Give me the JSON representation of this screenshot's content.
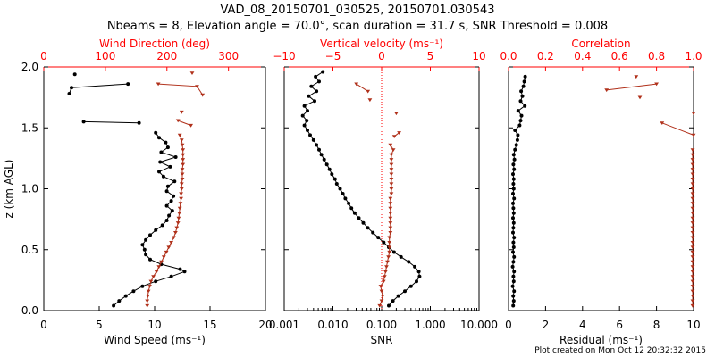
{
  "title": "VAD_08_20150701_030525, 20150701.030543",
  "subtitle": "Nbeams = 8, Elevation angle = 70.0°, scan duration = 31.7 s, SNR Threshold = 0.008",
  "footnote": "Plot created on Mon Oct 12 20:32:32 2015",
  "colors": {
    "black_series": "#000000",
    "red_series": "#b0301a",
    "red_axis": "#ff0000"
  },
  "chart_data": [
    {
      "type": "line",
      "ylabel": "z (km AGL)",
      "ylim": [
        0,
        2
      ],
      "yticks": [
        "0.0",
        "0.5",
        "1.0",
        "1.5",
        "2.0"
      ],
      "xlabel": "Wind Speed (ms⁻¹)",
      "xlim": [
        0,
        20
      ],
      "xticks": [
        "0",
        "5",
        "10",
        "15",
        "20"
      ],
      "top_label": "Wind Direction (deg)",
      "top_lim": [
        0,
        360
      ],
      "top_ticks": [
        "0",
        "100",
        "200",
        "300"
      ],
      "series": [
        {
          "axis": "bottom",
          "segments": [
            {
              "z": [
                0.04,
                0.08,
                0.12,
                0.16,
                0.2,
                0.24,
                0.28,
                0.32,
                0.34,
                0.38,
                0.42,
                0.46,
                0.5,
                0.54,
                0.58,
                0.62,
                0.66,
                0.7,
                0.74,
                0.78,
                0.82,
                0.86,
                0.9,
                0.94,
                0.98,
                1.02,
                1.06,
                1.1,
                1.14,
                1.18,
                1.22,
                1.26,
                1.3,
                1.34,
                1.38,
                1.42,
                1.46
              ],
              "v": [
                6.3,
                6.8,
                7.4,
                8.1,
                8.9,
                10.1,
                11.5,
                12.7,
                12.3,
                10.6,
                9.6,
                9.2,
                9.1,
                8.9,
                9.2,
                9.6,
                10.1,
                10.7,
                11.1,
                11.3,
                11.6,
                11.1,
                11.5,
                11.7,
                11.1,
                11.2,
                11.8,
                10.8,
                10.4,
                11.4,
                10.5,
                11.9,
                10.6,
                11.2,
                11.0,
                10.4,
                10.1
              ]
            },
            {
              "z": [
                1.55,
                1.54
              ],
              "v": [
                3.6,
                8.6
              ]
            },
            {
              "z": [
                1.78,
                1.83,
                1.86
              ],
              "v": [
                2.3,
                2.5,
                7.6
              ]
            },
            {
              "z": [
                1.94
              ],
              "v": [
                2.8
              ]
            }
          ]
        },
        {
          "axis": "top",
          "segments": [
            {
              "z": [
                0.04,
                0.08,
                0.12,
                0.16,
                0.2,
                0.24,
                0.28,
                0.32,
                0.36,
                0.4,
                0.44,
                0.48,
                0.52,
                0.56,
                0.6,
                0.64,
                0.68,
                0.72,
                0.76,
                0.8,
                0.84,
                0.88,
                0.92,
                0.96,
                1.0,
                1.04,
                1.08,
                1.12,
                1.16,
                1.2,
                1.24,
                1.28,
                1.32,
                1.36,
                1.4,
                1.44
              ],
              "v": [
                168,
                168,
                169,
                170,
                172,
                174,
                178,
                183,
                187,
                191,
                195,
                199,
                203,
                207,
                211,
                214,
                216,
                218,
                219,
                220,
                221,
                222,
                223,
                223,
                224,
                224,
                225,
                225,
                225,
                226,
                226,
                226,
                226,
                225,
                224,
                221
              ]
            },
            {
              "z": [
                1.56,
                1.52
              ],
              "v": [
                218,
                239
              ]
            },
            {
              "z": [
                1.63
              ],
              "v": [
                224
              ]
            },
            {
              "z": [
                1.86,
                1.84,
                1.77
              ],
              "v": [
                186,
                249,
                258
              ]
            },
            {
              "z": [
                1.95
              ],
              "v": [
                241
              ]
            }
          ]
        }
      ]
    },
    {
      "type": "line",
      "xlabel": "SNR",
      "xscale": "log",
      "xlim": [
        0.001,
        10
      ],
      "xticks": [
        "0.001",
        "0.010",
        "0.100",
        "1.000",
        "10.000"
      ],
      "top_label": "Vertical velocity (ms⁻¹)",
      "top_lim": [
        -10,
        10
      ],
      "top_ticks": [
        "−10",
        "−5",
        "0",
        "5",
        "10"
      ],
      "series": [
        {
          "axis": "bottom",
          "segments": [
            {
              "z": [
                0.04,
                0.08,
                0.12,
                0.16,
                0.2,
                0.24,
                0.28,
                0.32,
                0.36,
                0.4,
                0.44,
                0.48,
                0.52,
                0.56,
                0.6,
                0.64,
                0.68,
                0.72,
                0.76,
                0.8,
                0.84,
                0.88,
                0.92,
                0.96,
                1.0,
                1.04,
                1.08,
                1.12,
                1.16,
                1.2,
                1.24,
                1.28,
                1.32,
                1.36,
                1.4,
                1.44,
                1.48,
                1.52,
                1.56,
                1.6,
                1.64,
                1.68,
                1.72,
                1.76,
                1.8,
                1.84,
                1.88,
                1.92,
                1.96
              ],
              "v": [
                0.14,
                0.17,
                0.22,
                0.3,
                0.4,
                0.52,
                0.6,
                0.58,
                0.48,
                0.36,
                0.25,
                0.18,
                0.14,
                0.11,
                0.085,
                0.066,
                0.052,
                0.042,
                0.034,
                0.028,
                0.024,
                0.021,
                0.018,
                0.016,
                0.014,
                0.012,
                0.011,
                0.0095,
                0.0085,
                0.0075,
                0.0066,
                0.0058,
                0.0052,
                0.0046,
                0.004,
                0.0034,
                0.003,
                0.0026,
                0.0029,
                0.0024,
                0.003,
                0.0026,
                0.0042,
                0.0032,
                0.0046,
                0.0036,
                0.0052,
                0.0044,
                0.0062
              ]
            }
          ]
        },
        {
          "axis": "top",
          "segments": [
            {
              "z": [
                0.04,
                0.08,
                0.12,
                0.16,
                0.2,
                0.24,
                0.28,
                0.32,
                0.36,
                0.4,
                0.44,
                0.48,
                0.52,
                0.56,
                0.6,
                0.64,
                0.68,
                0.72,
                0.76,
                0.8,
                0.84,
                0.88,
                0.92,
                0.96,
                1.0,
                1.04,
                1.08,
                1.12,
                1.16,
                1.2,
                1.24,
                1.28,
                1.32,
                1.36
              ],
              "v": [
                -0.2,
                0.0,
                0.1,
                0.0,
                -0.1,
                0.2,
                0.3,
                0.4,
                0.5,
                0.6,
                0.7,
                0.8,
                0.8,
                0.8,
                0.8,
                0.9,
                0.9,
                0.9,
                0.9,
                0.9,
                0.9,
                0.9,
                0.9,
                1.0,
                1.0,
                1.0,
                1.0,
                1.0,
                1.0,
                1.0,
                1.0,
                1.0,
                1.2,
                0.9
              ]
            },
            {
              "z": [
                1.43,
                1.46
              ],
              "v": [
                1.3,
                1.8
              ]
            },
            {
              "z": [
                1.62
              ],
              "v": [
                1.5
              ]
            },
            {
              "z": [
                1.73
              ],
              "v": [
                -1.2
              ]
            },
            {
              "z": [
                1.86,
                1.8
              ],
              "v": [
                -2.6,
                -1.4
              ]
            }
          ]
        }
      ]
    },
    {
      "type": "line",
      "xlabel": "Residual (ms⁻¹)",
      "xlim": [
        0,
        10
      ],
      "xticks": [
        "0",
        "2",
        "4",
        "6",
        "8",
        "10"
      ],
      "top_label": "Correlation",
      "top_lim": [
        0,
        1
      ],
      "top_ticks": [
        "0.0",
        "0.2",
        "0.4",
        "0.6",
        "0.8",
        "1.0"
      ],
      "series": [
        {
          "axis": "bottom",
          "segments": [
            {
              "z": [
                0.04,
                0.08,
                0.12,
                0.16,
                0.2,
                0.24,
                0.28,
                0.32,
                0.36,
                0.4,
                0.44,
                0.48,
                0.52,
                0.56,
                0.6,
                0.64,
                0.68,
                0.72,
                0.76,
                0.8,
                0.84,
                0.88,
                0.92,
                0.96,
                1.0,
                1.04,
                1.08,
                1.12,
                1.16,
                1.2,
                1.24,
                1.28,
                1.32,
                1.36,
                1.4,
                1.44,
                1.48,
                1.52,
                1.56,
                1.6,
                1.64,
                1.68,
                1.72,
                1.76,
                1.8,
                1.84,
                1.88,
                1.92
              ],
              "v": [
                0.25,
                0.28,
                0.25,
                0.3,
                0.22,
                0.28,
                0.26,
                0.3,
                0.22,
                0.26,
                0.3,
                0.24,
                0.28,
                0.26,
                0.3,
                0.24,
                0.26,
                0.28,
                0.24,
                0.28,
                0.26,
                0.24,
                0.3,
                0.24,
                0.28,
                0.26,
                0.28,
                0.24,
                0.3,
                0.26,
                0.32,
                0.28,
                0.35,
                0.42,
                0.48,
                0.5,
                0.35,
                0.6,
                0.65,
                0.7,
                0.52,
                0.88,
                0.65,
                0.75,
                0.68,
                0.8,
                0.85,
                0.9
              ]
            }
          ]
        },
        {
          "axis": "top",
          "segments": [
            {
              "z": [
                0.04,
                0.08,
                0.12,
                0.16,
                0.2,
                0.24,
                0.28,
                0.32,
                0.36,
                0.4,
                0.44,
                0.48,
                0.52,
                0.56,
                0.6,
                0.64,
                0.68,
                0.72,
                0.76,
                0.8,
                0.84,
                0.88,
                0.92,
                0.96,
                1.0,
                1.04,
                1.08,
                1.12,
                1.16,
                1.2,
                1.24,
                1.28,
                1.32
              ],
              "v": [
                0.995,
                0.995,
                0.995,
                0.995,
                0.995,
                0.995,
                0.995,
                0.995,
                0.995,
                0.995,
                0.995,
                0.995,
                0.995,
                0.995,
                0.995,
                0.995,
                0.995,
                0.995,
                0.995,
                0.995,
                0.995,
                0.995,
                0.995,
                0.995,
                0.995,
                0.995,
                0.995,
                0.995,
                0.995,
                0.995,
                0.995,
                0.995,
                0.995
              ]
            },
            {
              "z": [
                1.44,
                1.54
              ],
              "v": [
                1.0,
                0.83
              ]
            },
            {
              "z": [
                1.62
              ],
              "v": [
                1.0
              ]
            },
            {
              "z": [
                1.75
              ],
              "v": [
                0.71
              ]
            },
            {
              "z": [
                1.81,
                1.86
              ],
              "v": [
                0.53,
                0.8
              ]
            },
            {
              "z": [
                1.92
              ],
              "v": [
                0.69
              ]
            }
          ]
        }
      ]
    }
  ]
}
